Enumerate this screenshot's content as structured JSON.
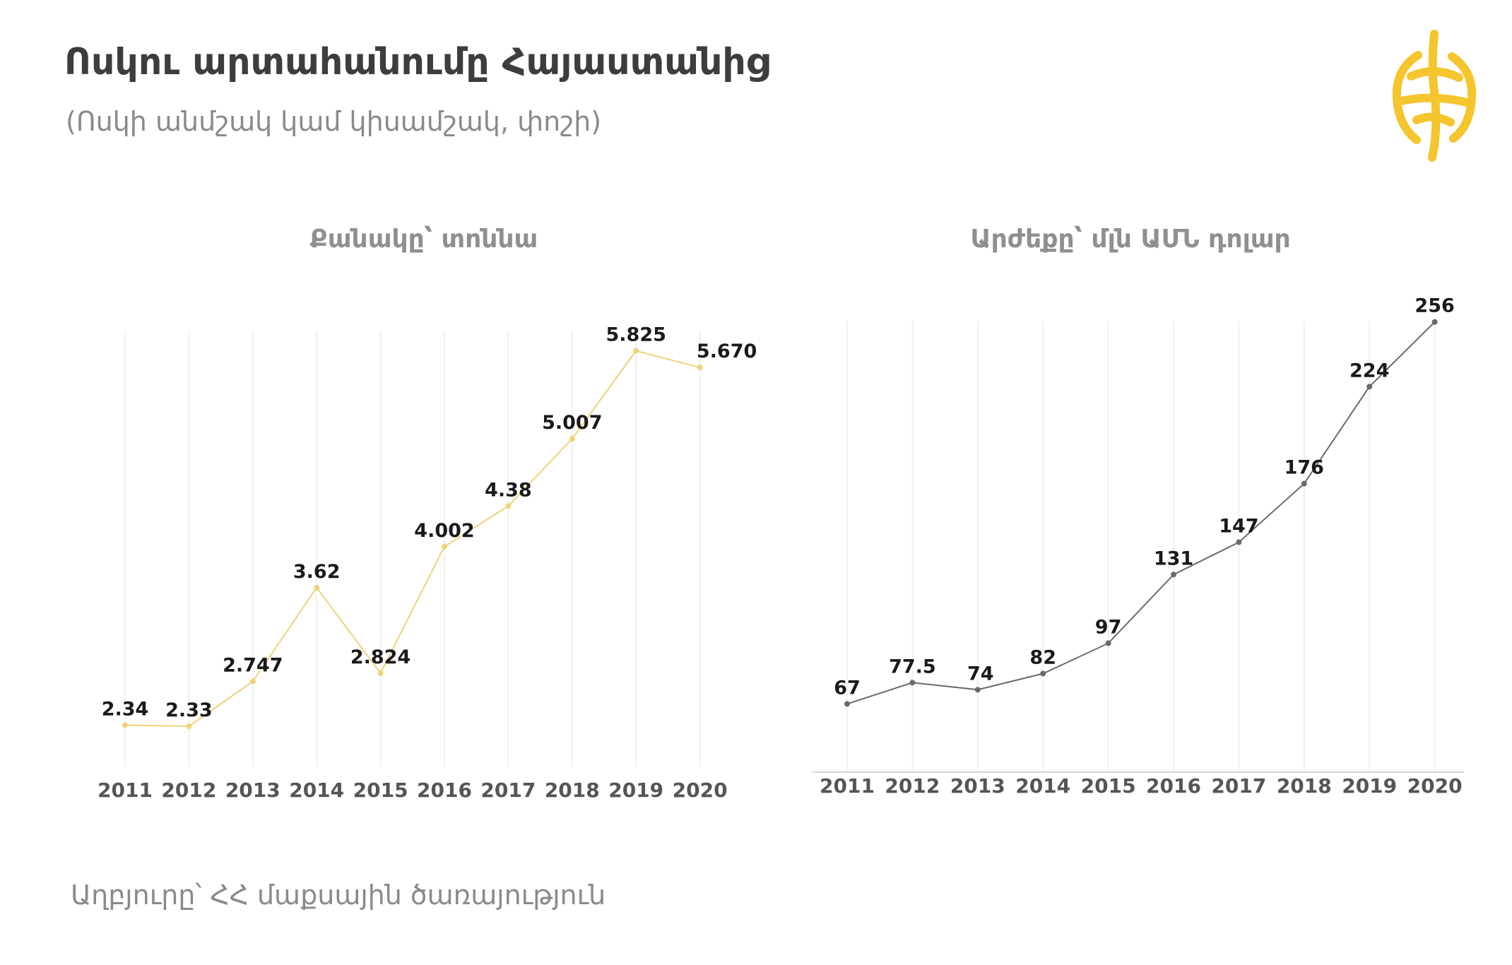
{
  "header": {
    "title": "Ոսկու արտահանումը Հայաստանից",
    "subtitle": "(Ոսկի անմշակ կամ կիսամշակ, փոշի)"
  },
  "footer": {
    "source": "Աղբյուրը՝ ՀՀ մաքսային ծառայություն"
  },
  "logo": {
    "icon": "golden-globe-logo-icon",
    "color": "#f5c52e"
  },
  "chart_data": [
    {
      "type": "line",
      "title": "Քանակը՝ տոննա",
      "x": [
        "2011",
        "2012",
        "2013",
        "2014",
        "2015",
        "2016",
        "2017",
        "2018",
        "2019",
        "2020"
      ],
      "values": [
        2.34,
        2.33,
        2.747,
        3.62,
        2.824,
        4.002,
        4.38,
        5.007,
        5.825,
        5.67
      ],
      "labels": [
        "2.34",
        "2.33",
        "2.747",
        "3.62",
        "2.824",
        "4.002",
        "4.38",
        "5.007",
        "5.825",
        "5.670"
      ],
      "color": "#f0d27a",
      "grid": "vertical",
      "axis_line": false
    },
    {
      "type": "line",
      "title": "Արժեքը՝ մլն ԱՄՆ դոլար",
      "x": [
        "2011",
        "2012",
        "2013",
        "2014",
        "2015",
        "2016",
        "2017",
        "2018",
        "2019",
        "2020"
      ],
      "values": [
        67,
        77.5,
        74,
        82,
        97,
        131,
        147,
        176,
        224,
        256
      ],
      "labels": [
        "67",
        "77.5",
        "74",
        "82",
        "97",
        "131",
        "147",
        "176",
        "224",
        "256"
      ],
      "color": "#6b6b6b",
      "grid": "vertical",
      "axis_line": true
    }
  ]
}
